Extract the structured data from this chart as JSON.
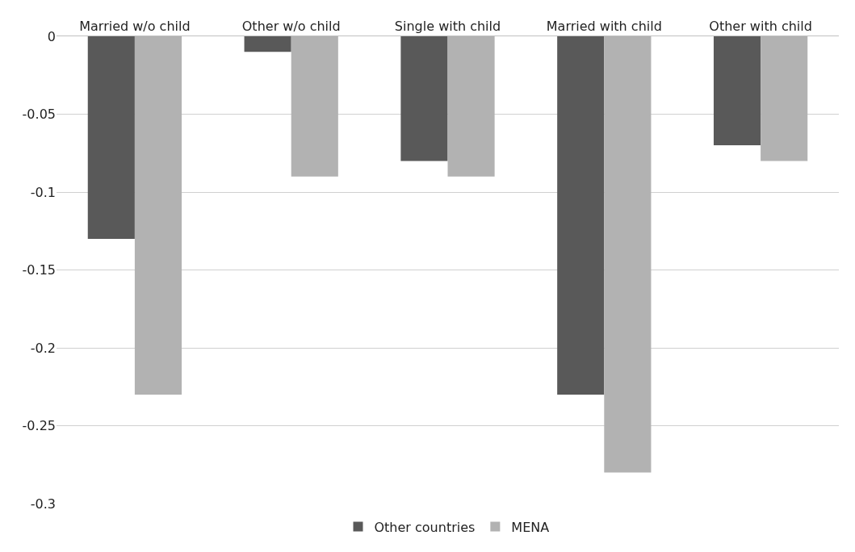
{
  "chart_data": {
    "type": "bar",
    "categories": [
      "Married w/o child",
      "Other w/o child",
      "Single with child",
      "Married with child",
      "Other with child"
    ],
    "series": [
      {
        "name": "Other countries",
        "color": "#595959",
        "values": [
          -0.13,
          -0.01,
          -0.08,
          -0.23,
          -0.07
        ]
      },
      {
        "name": "MENA",
        "color": "#b2b2b2",
        "values": [
          -0.23,
          -0.09,
          -0.09,
          -0.28,
          -0.08
        ]
      }
    ],
    "ylim": [
      -0.3,
      0
    ],
    "yticks": [
      0,
      -0.05,
      -0.1,
      -0.15,
      -0.2,
      -0.25,
      -0.3
    ],
    "grid": "y",
    "legend": "bottom"
  }
}
